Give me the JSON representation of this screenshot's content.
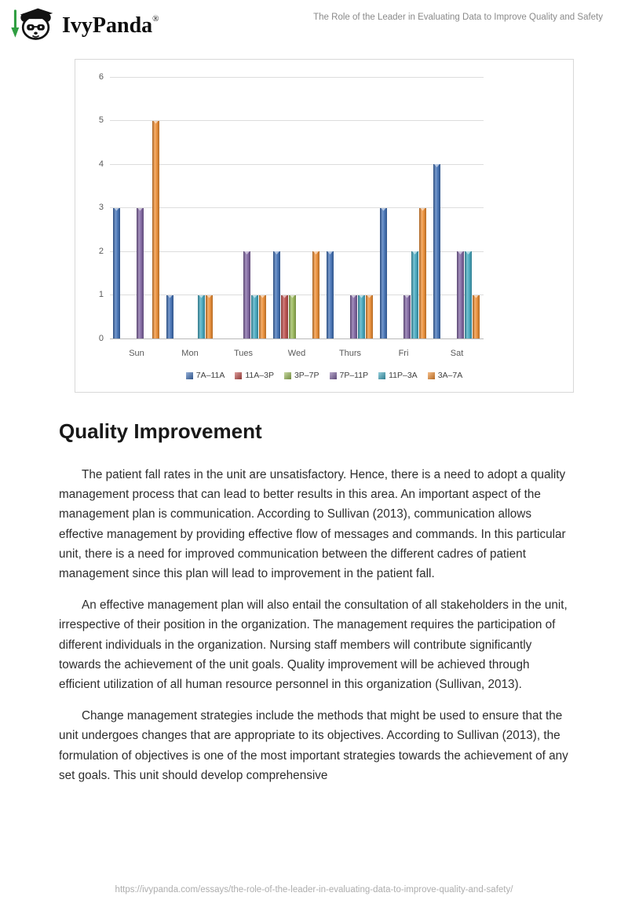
{
  "header": {
    "logo_text": "IvyPanda",
    "logo_registered": "®",
    "page_title": "The Role of the Leader in Evaluating Data to Improve Quality and Safety"
  },
  "chart_data": {
    "type": "bar",
    "title": "",
    "xlabel": "",
    "ylabel": "",
    "categories": [
      "Sun",
      "Mon",
      "Tues",
      "Wed",
      "Thurs",
      "Fri",
      "Sat"
    ],
    "series": [
      {
        "name": "7A–11A",
        "color": "#3E6FB7",
        "values": [
          3,
          1,
          0,
          2,
          2,
          3,
          4
        ]
      },
      {
        "name": "11A–3P",
        "color": "#BE4B48",
        "values": [
          0,
          0,
          0,
          1,
          0,
          0,
          0
        ]
      },
      {
        "name": "3P–7P",
        "color": "#98B954",
        "values": [
          0,
          0,
          0,
          1,
          0,
          0,
          0
        ]
      },
      {
        "name": "7P–11P",
        "color": "#7E62A1",
        "values": [
          3,
          0,
          2,
          0,
          1,
          1,
          2
        ]
      },
      {
        "name": "11P–3A",
        "color": "#3FA8C0",
        "values": [
          0,
          1,
          1,
          0,
          1,
          2,
          2
        ]
      },
      {
        "name": "3A–7A",
        "color": "#F08C2E",
        "values": [
          5,
          1,
          1,
          2,
          1,
          3,
          1
        ]
      }
    ],
    "ylim": [
      0,
      6
    ],
    "yticks": [
      0,
      1,
      2,
      3,
      4,
      5,
      6
    ],
    "grid": true,
    "legend_position": "bottom"
  },
  "article": {
    "heading": "Quality Improvement",
    "paragraphs": [
      "The patient fall rates in the unit are unsatisfactory. Hence, there is a need to adopt a quality management process that can lead to better results in this area. An important aspect of the management plan is communication. According to Sullivan (2013), communication allows effective management by providing effective flow of messages and commands. In this particular unit, there is a need for improved communication between the different cadres of patient management since this plan will lead to improvement in the patient fall.",
      "An effective management plan will also entail the consultation of all stakeholders in the unit, irrespective of their position in the organization. The management requires the participation of different individuals in the organization. Nursing staff members will contribute significantly towards the achievement of the unit goals. Quality improvement will be achieved through efficient utilization of all human resource personnel in this organization (Sullivan, 2013).",
      "Change management strategies include the methods that might be used to ensure that the unit undergoes changes that are appropriate to its objectives. According to Sullivan (2013), the formulation of objectives is one of the most important strategies towards the achievement of any set goals. This unit should develop comprehensive"
    ]
  },
  "footer": {
    "url": "https://ivypanda.com/essays/the-role-of-the-leader-in-evaluating-data-to-improve-quality-and-safety/"
  }
}
